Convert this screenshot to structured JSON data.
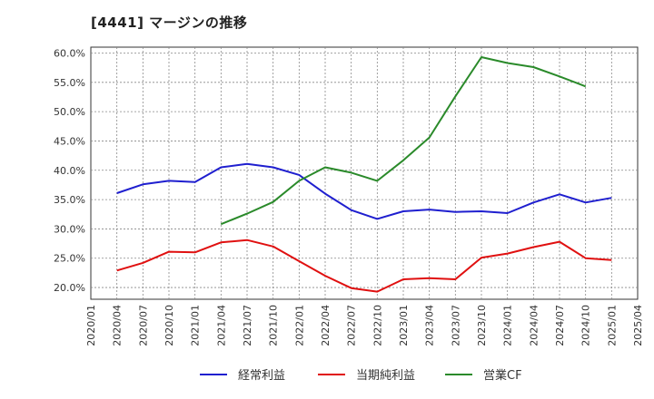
{
  "title": "[4441]  マージンの推移",
  "chart_data": {
    "type": "line",
    "x": [
      "2020/01",
      "2020/04",
      "2020/07",
      "2020/10",
      "2021/01",
      "2021/04",
      "2021/07",
      "2021/10",
      "2022/01",
      "2022/04",
      "2022/07",
      "2022/10",
      "2023/01",
      "2023/04",
      "2023/07",
      "2023/10",
      "2024/01",
      "2024/04",
      "2024/07",
      "2024/10",
      "2025/01",
      "2025/04"
    ],
    "ylim": [
      18,
      61
    ],
    "yticks": [
      20,
      25,
      30,
      35,
      40,
      45,
      50,
      55,
      60
    ],
    "ytick_labels": [
      "20.0%",
      "25.0%",
      "30.0%",
      "35.0%",
      "40.0%",
      "45.0%",
      "50.0%",
      "55.0%",
      "60.0%"
    ],
    "grid": true,
    "legend_position": "bottom",
    "series": [
      {
        "name": "経常利益",
        "color": "#1f1fcf",
        "values": [
          null,
          36.1,
          37.6,
          38.2,
          38.0,
          40.5,
          41.1,
          40.5,
          39.2,
          36.0,
          33.2,
          31.7,
          33.0,
          33.3,
          32.9,
          33.0,
          32.7,
          34.5,
          35.9,
          34.5,
          35.3,
          null
        ]
      },
      {
        "name": "当期純利益",
        "color": "#e01010",
        "values": [
          null,
          22.9,
          24.2,
          26.1,
          26.0,
          27.7,
          28.1,
          27.0,
          24.5,
          22.0,
          19.9,
          19.3,
          21.4,
          21.6,
          21.4,
          25.1,
          25.8,
          26.9,
          27.8,
          25.0,
          24.7,
          null
        ]
      },
      {
        "name": "営業CF",
        "color": "#2a8a2a",
        "values": [
          null,
          null,
          null,
          null,
          null,
          30.8,
          32.6,
          34.6,
          38.2,
          40.5,
          39.6,
          38.2,
          41.7,
          45.6,
          52.6,
          59.3,
          58.3,
          57.6,
          56.0,
          54.3,
          null,
          null
        ]
      }
    ]
  }
}
